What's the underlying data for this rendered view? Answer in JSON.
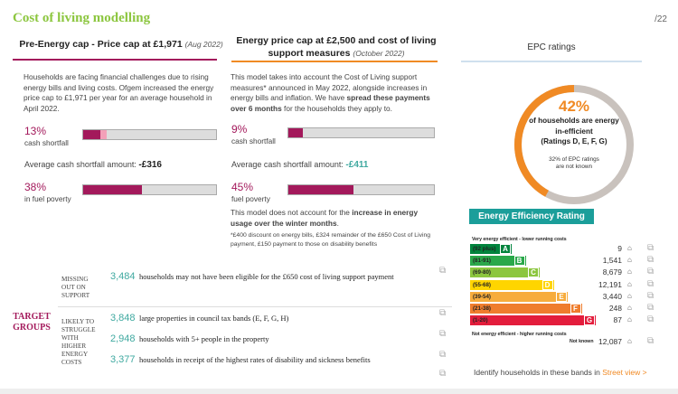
{
  "header": {
    "title": "Cost of living modelling",
    "page": "/22"
  },
  "col1": {
    "heading": "Pre-Energy cap - Price cap at £1,971",
    "heading_sub": "(Aug 2022)",
    "para": "Households are facing financial challenges due to rising energy bills and living costs. Ofgem increased the energy price cap to £1,971 per year for an average household in April 2022.",
    "shortfall_pct": "13%",
    "shortfall_label": "cash shortfall",
    "shortfall_value": 0.13,
    "avg_label": "Average cash shortfall amount:",
    "avg_value": "-£316",
    "poverty_pct": "38%",
    "poverty_label": "in fuel poverty",
    "poverty_value": 0.38
  },
  "col2": {
    "heading_line1": "Energy price cap at £2,500 and cost of living",
    "heading_line2": "support measures",
    "heading_sub": "(October 2022)",
    "para_a": "This model takes into account the Cost of Living support measures* announced in May 2022, alongside increases in energy bills and inflation. We have ",
    "para_b": "spread these payments over 6 months",
    "para_c": " for the households they apply to.",
    "shortfall_pct": "9%",
    "shortfall_label": "cash shortfall",
    "shortfall_value": 0.09,
    "avg_label": "Average cash shortfall amount:",
    "avg_value": "-£411",
    "poverty_pct": "45%",
    "poverty_label": "fuel poverty",
    "poverty_value": 0.45,
    "note_a": "This model does not account for the ",
    "note_b": "increase in energy usage over the winter months",
    "note_c": ".",
    "footnote": "*£400 discount on energy bills, £324 remainder of the £650 Cost of Living payment, £150 payment to those on disability benefits"
  },
  "epc": {
    "heading": "EPC ratings",
    "ring_pct": "42%",
    "ring_value": 0.42,
    "ring_line1": "of households are energy",
    "ring_line2": "in-efficient",
    "ring_line3": "(Ratings D, E, F, G)",
    "ring_note1": "32% of EPC ratings",
    "ring_note2": "are not known",
    "rating_title": "Energy Efficiency Rating",
    "top_note": "Very energy efficient - lower running costs",
    "bottom_note": "Not energy efficient - higher running costs",
    "bands": [
      {
        "range": "(92 plus)",
        "letter": "A",
        "color": "#00843d",
        "count": "9"
      },
      {
        "range": "(81-91)",
        "letter": "B",
        "color": "#2aa84a",
        "count": "1,541"
      },
      {
        "range": "(69-80)",
        "letter": "C",
        "color": "#8cc63f",
        "count": "8,679"
      },
      {
        "range": "(55-68)",
        "letter": "D",
        "color": "#ffd500",
        "count": "12,191"
      },
      {
        "range": "(39-54)",
        "letter": "E",
        "color": "#f7ac3c",
        "count": "3,440"
      },
      {
        "range": "(21-38)",
        "letter": "F",
        "color": "#ef7d2d",
        "count": "248"
      },
      {
        "range": "(1-20)",
        "letter": "G",
        "color": "#e31d3c",
        "count": "87"
      }
    ],
    "not_known_label": "Not known",
    "not_known_count": "12,087",
    "street_text": "Identify households in these bands in ",
    "street_link": "Street view >"
  },
  "target": {
    "label_line1": "TARGET",
    "label_line2": "GROUPS",
    "missing_label": [
      "MISSING",
      "OUT ON",
      "SUPPORT"
    ],
    "struggle_label": [
      "LIKELY TO",
      "STRUGGLE",
      "WITH",
      "HIGHER",
      "ENERGY",
      "COSTS"
    ],
    "rows": [
      {
        "num": "3,484",
        "text": "households may not have been eligible for the £650 cost of living support payment"
      },
      {
        "num": "3,848",
        "text": "large properties in council tax bands (E, F, G, H)"
      },
      {
        "num": "2,948",
        "text": "households with 5+ people in the property"
      },
      {
        "num": "3,377",
        "text": "households in receipt of the highest rates of disability and sickness benefits"
      }
    ]
  },
  "colors": {
    "magenta": "#a3195b",
    "orange": "#f08a24",
    "teal": "#3fa9a0",
    "green": "#8cc63f"
  }
}
